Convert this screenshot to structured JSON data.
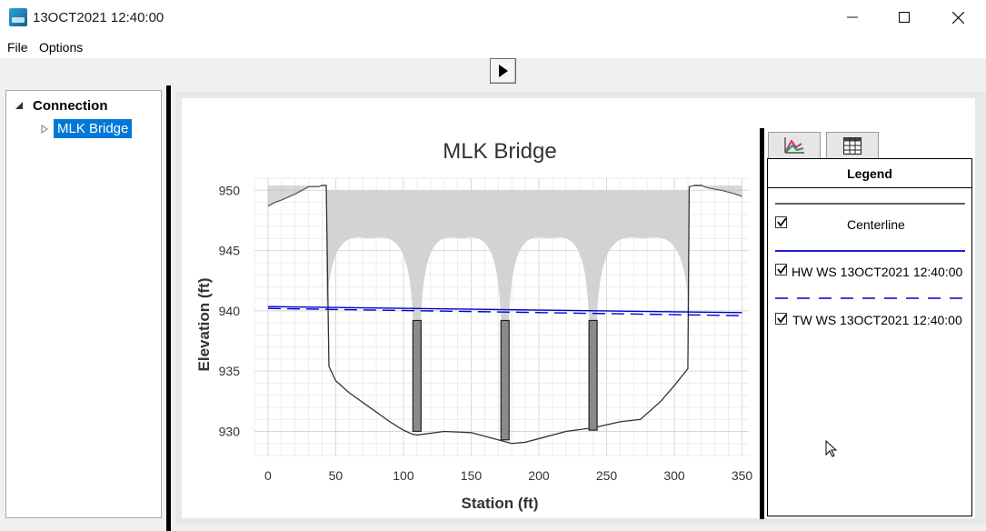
{
  "window": {
    "title": "13OCT2021 12:40:00",
    "icon": "app-icon",
    "controls": [
      "minimize-icon",
      "maximize-icon",
      "close-icon"
    ]
  },
  "menu": {
    "file": "File",
    "options": "Options"
  },
  "toolbar": {
    "play_icon": "play-icon"
  },
  "tree": {
    "root_label": "Connection",
    "child_label": "MLK Bridge",
    "expanded_icon": "expanded-triangle-icon",
    "collapsed_icon": "collapsed-triangle-icon"
  },
  "legend": {
    "tabs": [
      {
        "icon": "chart-icon",
        "selected": true
      },
      {
        "icon": "table-icon",
        "selected": false
      }
    ],
    "header": "Legend",
    "items": [
      {
        "label": "Centerline",
        "checked": true,
        "line_style": "solid",
        "color": "#000000"
      },
      {
        "label": "HW WS 13OCT2021 12:40:00",
        "checked": true,
        "line_style": "solid",
        "color": "#0000cc"
      },
      {
        "label": "TW WS 13OCT2021 12:40:00",
        "checked": true,
        "line_style": "dashed",
        "color": "#0000cc"
      }
    ]
  },
  "chart_data": {
    "type": "area",
    "title": "MLK Bridge",
    "xlabel": "Station (ft)",
    "ylabel": "Elevation (ft)",
    "xlim": [
      -10,
      355
    ],
    "ylim": [
      928,
      951
    ],
    "xticks": [
      0,
      50,
      100,
      150,
      200,
      250,
      300,
      350
    ],
    "yticks": [
      930,
      935,
      940,
      945,
      950
    ],
    "grid": true,
    "ground": {
      "x": [
        0,
        5,
        10,
        20,
        30,
        37,
        40,
        43,
        45,
        50,
        60,
        75,
        90,
        100,
        106,
        110,
        130,
        150,
        160,
        170,
        180,
        190,
        200,
        220,
        240,
        260,
        275,
        290,
        300,
        310,
        311,
        315,
        320,
        325,
        335,
        345,
        350
      ],
      "y": [
        948.7,
        949.0,
        949.2,
        949.7,
        950.3,
        950.3,
        950.4,
        950.4,
        935.4,
        934.2,
        933.2,
        932.0,
        930.8,
        930.1,
        929.8,
        929.7,
        930.0,
        929.9,
        929.6,
        929.3,
        929.0,
        929.1,
        929.4,
        930.0,
        930.3,
        930.8,
        931.0,
        932.5,
        933.8,
        935.2,
        950.3,
        950.4,
        950.4,
        950.2,
        950.0,
        949.7,
        949.5
      ]
    },
    "deck_elevation": 950.0,
    "deck_station_range": [
      43,
      311
    ],
    "piers": [
      {
        "x_left": 107,
        "x_right": 113,
        "bottom": 930.0,
        "top": 939.2
      },
      {
        "x_left": 172,
        "x_right": 178,
        "bottom": 929.3,
        "top": 939.2
      },
      {
        "x_left": 237,
        "x_right": 243,
        "bottom": 930.1,
        "top": 939.2
      }
    ],
    "arch_crown": 946.0,
    "arch_springline": 939.2,
    "series": [
      {
        "name": "HW WS 13OCT2021 12:40:00",
        "x": [
          0,
          350
        ],
        "y": [
          940.35,
          939.85
        ],
        "style": "solid",
        "color": "#0000cc"
      },
      {
        "name": "TW WS 13OCT2021 12:40:00",
        "x": [
          0,
          350
        ],
        "y": [
          940.2,
          939.6
        ],
        "style": "dashed",
        "color": "#0000cc"
      }
    ]
  }
}
